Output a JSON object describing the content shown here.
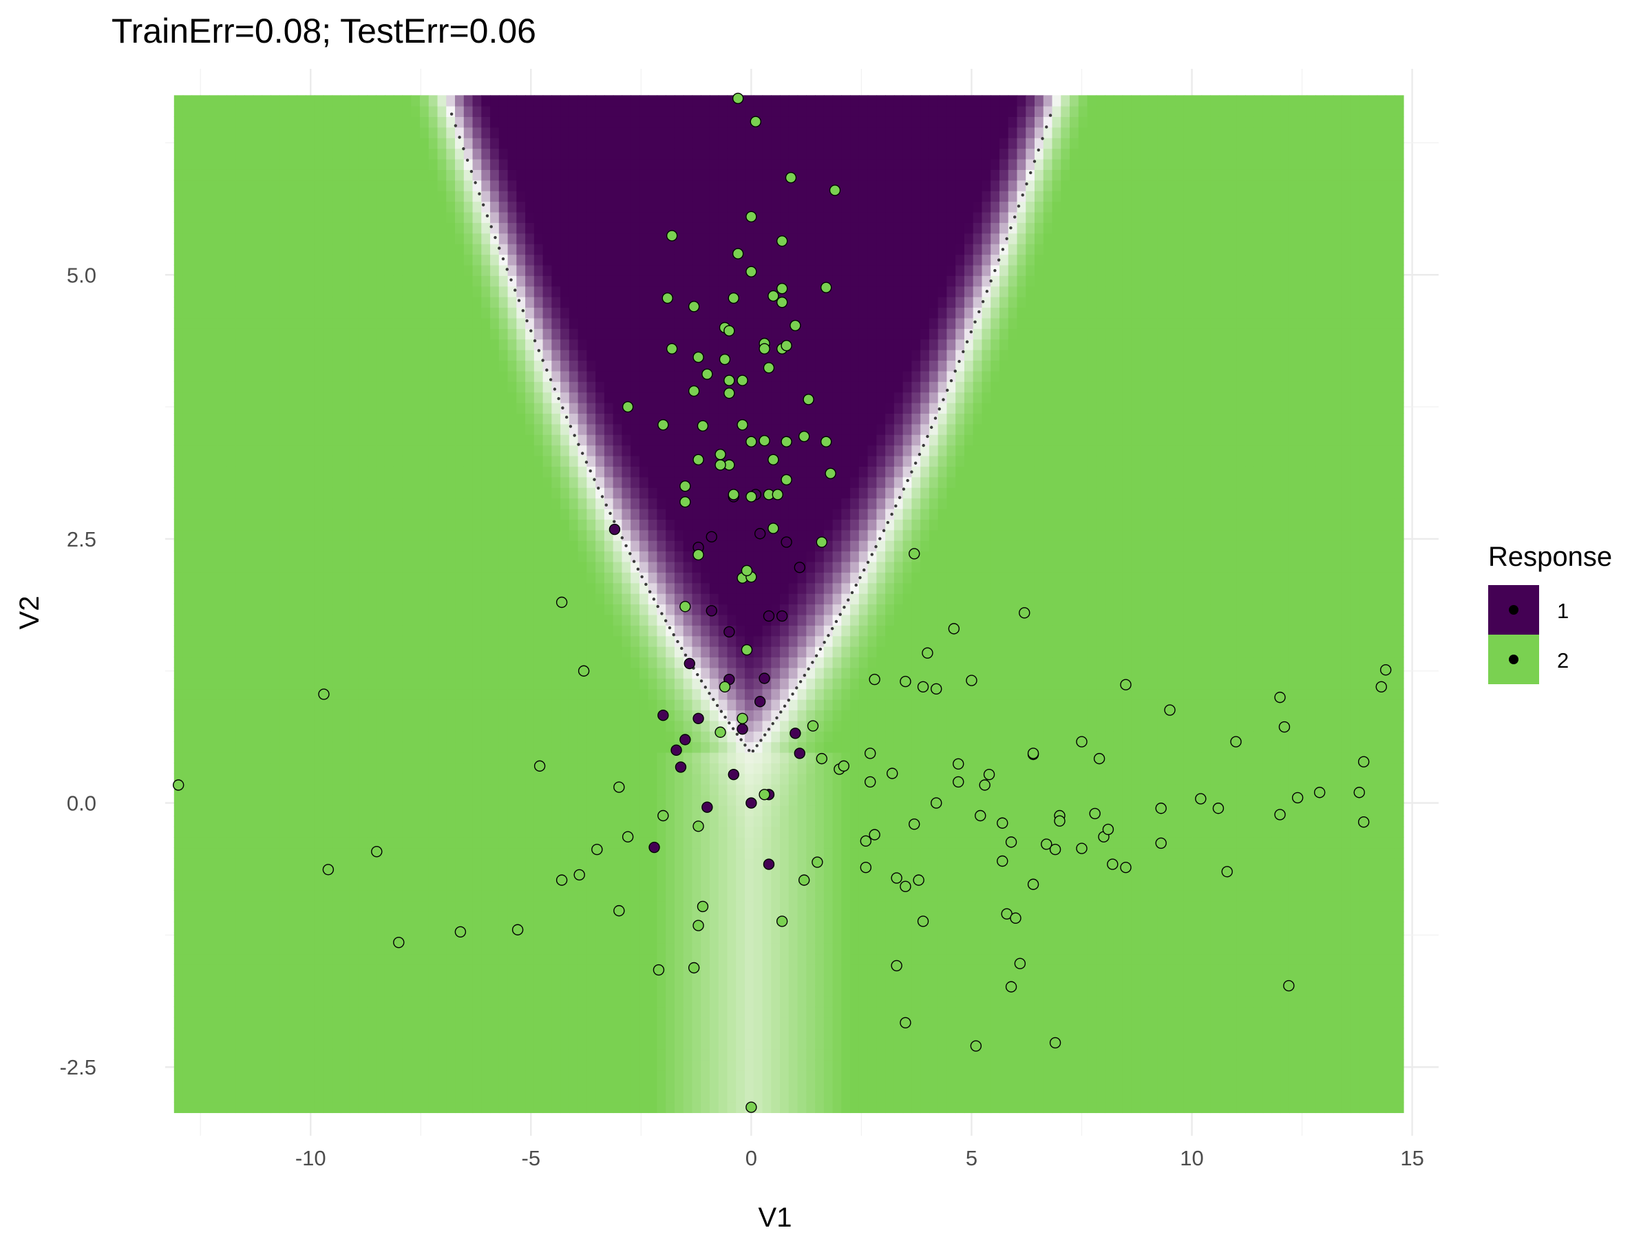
{
  "chart_data": {
    "type": "scatter",
    "title": "TrainErr=0.08;    TestErr=0.06",
    "xlabel": "V1",
    "ylabel": "V2",
    "xlim": [
      -13.3,
      15.6
    ],
    "ylim": [
      -3.15,
      6.95
    ],
    "x_ticks": [
      -10,
      -5,
      0,
      5,
      10,
      15
    ],
    "x_tick_labels": [
      "-10",
      "-5",
      "0",
      "5",
      "10",
      "15"
    ],
    "y_ticks": [
      -2.5,
      0.0,
      2.5,
      5.0
    ],
    "y_tick_labels": [
      "-2.5",
      "0.0",
      "2.5",
      "5.0"
    ],
    "grid": true,
    "background": {
      "type": "heatmap",
      "description_keys": [
        "class1_region",
        "class2_region"
      ],
      "x_range": [
        -13.1,
        14.8
      ],
      "y_range": [
        -2.93,
        6.7
      ],
      "class1_color": "#440154",
      "class2_color": "#7AD151",
      "boundary": "y = 0.47 + 0.05 * x^2 + 0.55 * |x|"
    },
    "legend": {
      "title": "Response",
      "position": "right",
      "entries": [
        {
          "label": "1",
          "color": "#440154"
        },
        {
          "label": "2",
          "color": "#7AD151"
        }
      ]
    },
    "series": [
      {
        "name": "1",
        "color": "#440154",
        "points": [
          [
            -2.0,
            0.83
          ],
          [
            -1.7,
            0.5
          ],
          [
            -1.5,
            0.6
          ],
          [
            -1.4,
            1.32
          ],
          [
            -1.2,
            0.8
          ],
          [
            -1.0,
            -0.04
          ],
          [
            -0.9,
            1.82
          ],
          [
            -0.5,
            1.62
          ],
          [
            -0.5,
            1.17
          ],
          [
            -0.4,
            0.27
          ],
          [
            -0.2,
            0.7
          ],
          [
            0.0,
            0.0
          ],
          [
            0.2,
            0.96
          ],
          [
            0.3,
            1.18
          ],
          [
            0.4,
            0.08
          ],
          [
            0.4,
            -0.58
          ],
          [
            1.0,
            0.66
          ],
          [
            1.1,
            0.47
          ],
          [
            -2.2,
            -0.42
          ],
          [
            -1.6,
            0.34
          ],
          [
            0.4,
            1.77
          ],
          [
            0.7,
            1.77
          ],
          [
            -3.1,
            2.59
          ],
          [
            -0.4,
            2.9
          ],
          [
            0.1,
            2.92
          ],
          [
            -0.9,
            2.52
          ],
          [
            0.2,
            2.55
          ],
          [
            1.1,
            2.23
          ],
          [
            -1.2,
            2.42
          ],
          [
            0.8,
            2.47
          ]
        ]
      },
      {
        "name": "2",
        "color": "#7AD151",
        "points": [
          [
            -1.5,
            1.86
          ],
          [
            -0.6,
            1.1
          ],
          [
            -0.7,
            0.67
          ],
          [
            -0.2,
            0.8
          ],
          [
            -0.1,
            1.45
          ],
          [
            0.3,
            0.08
          ],
          [
            -13.0,
            0.17
          ],
          [
            -9.7,
            1.03
          ],
          [
            -9.6,
            -0.63
          ],
          [
            -8.5,
            -0.46
          ],
          [
            -8.0,
            -1.32
          ],
          [
            -6.6,
            -1.22
          ],
          [
            -5.3,
            -1.2
          ],
          [
            -4.8,
            0.35
          ],
          [
            -4.3,
            1.9
          ],
          [
            -4.3,
            -0.73
          ],
          [
            -3.9,
            -0.68
          ],
          [
            -3.8,
            1.25
          ],
          [
            -3.5,
            -0.44
          ],
          [
            -3.0,
            0.15
          ],
          [
            -3.0,
            -1.02
          ],
          [
            -2.8,
            -0.32
          ],
          [
            -2.1,
            -1.58
          ],
          [
            -2.0,
            -0.12
          ],
          [
            -1.3,
            -1.56
          ],
          [
            -1.2,
            -0.22
          ],
          [
            -1.2,
            -1.16
          ],
          [
            -1.1,
            -0.98
          ],
          [
            0.7,
            -1.12
          ],
          [
            1.2,
            -0.73
          ],
          [
            1.4,
            0.73
          ],
          [
            1.5,
            -0.56
          ],
          [
            1.6,
            0.42
          ],
          [
            2.0,
            0.32
          ],
          [
            2.1,
            0.35
          ],
          [
            2.6,
            -0.36
          ],
          [
            2.6,
            -0.61
          ],
          [
            2.7,
            0.2
          ],
          [
            2.7,
            0.47
          ],
          [
            2.8,
            -0.3
          ],
          [
            2.8,
            1.17
          ],
          [
            3.2,
            0.28
          ],
          [
            3.3,
            -0.71
          ],
          [
            3.3,
            -1.54
          ],
          [
            3.5,
            1.15
          ],
          [
            3.5,
            -0.79
          ],
          [
            3.5,
            -2.08
          ],
          [
            3.7,
            -0.2
          ],
          [
            3.7,
            2.36
          ],
          [
            3.8,
            -0.73
          ],
          [
            3.9,
            1.1
          ],
          [
            3.9,
            -1.12
          ],
          [
            4.0,
            1.42
          ],
          [
            4.2,
            0.0
          ],
          [
            4.2,
            1.08
          ],
          [
            4.6,
            1.65
          ],
          [
            4.7,
            0.37
          ],
          [
            4.7,
            0.2
          ],
          [
            5.0,
            1.16
          ],
          [
            5.1,
            -2.3
          ],
          [
            5.2,
            -0.12
          ],
          [
            5.3,
            0.17
          ],
          [
            5.4,
            0.27
          ],
          [
            5.7,
            -0.19
          ],
          [
            5.7,
            -0.55
          ],
          [
            5.8,
            -1.05
          ],
          [
            5.9,
            -0.37
          ],
          [
            5.9,
            -1.74
          ],
          [
            6.0,
            -1.09
          ],
          [
            6.1,
            -1.52
          ],
          [
            6.2,
            1.8
          ],
          [
            6.4,
            0.46
          ],
          [
            6.4,
            0.47
          ],
          [
            6.4,
            -0.77
          ],
          [
            6.7,
            -0.39
          ],
          [
            6.9,
            -0.44
          ],
          [
            6.9,
            -2.27
          ],
          [
            7.0,
            -0.12
          ],
          [
            7.0,
            -0.17
          ],
          [
            7.5,
            -0.43
          ],
          [
            7.5,
            0.58
          ],
          [
            7.8,
            -0.1
          ],
          [
            7.9,
            0.42
          ],
          [
            8.0,
            -0.32
          ],
          [
            8.1,
            -0.25
          ],
          [
            8.2,
            -0.58
          ],
          [
            8.5,
            -0.61
          ],
          [
            8.5,
            1.12
          ],
          [
            9.3,
            -0.05
          ],
          [
            9.3,
            -0.38
          ],
          [
            9.5,
            0.88
          ],
          [
            10.2,
            0.04
          ],
          [
            10.6,
            -0.05
          ],
          [
            10.8,
            -0.65
          ],
          [
            11.0,
            0.58
          ],
          [
            12.0,
            1.0
          ],
          [
            12.0,
            -0.11
          ],
          [
            12.1,
            0.72
          ],
          [
            12.2,
            -1.73
          ],
          [
            12.4,
            0.05
          ],
          [
            12.9,
            0.1
          ],
          [
            13.8,
            0.1
          ],
          [
            13.9,
            -0.18
          ],
          [
            13.9,
            0.39
          ],
          [
            14.3,
            1.1
          ],
          [
            14.4,
            1.26
          ],
          [
            0.0,
            -2.88
          ],
          [
            -0.3,
            6.67
          ],
          [
            0.1,
            6.45
          ],
          [
            0.9,
            5.92
          ],
          [
            1.9,
            5.8
          ],
          [
            0.0,
            5.55
          ],
          [
            -1.8,
            5.37
          ],
          [
            0.7,
            5.32
          ],
          [
            -0.3,
            5.2
          ],
          [
            0.0,
            5.03
          ],
          [
            0.7,
            4.87
          ],
          [
            -0.4,
            4.78
          ],
          [
            0.5,
            4.8
          ],
          [
            -1.9,
            4.78
          ],
          [
            0.7,
            4.74
          ],
          [
            -1.3,
            4.7
          ],
          [
            1.7,
            4.88
          ],
          [
            -0.6,
            4.5
          ],
          [
            1.0,
            4.52
          ],
          [
            -0.5,
            4.47
          ],
          [
            0.3,
            4.35
          ],
          [
            0.3,
            4.3
          ],
          [
            0.7,
            4.3
          ],
          [
            0.8,
            4.33
          ],
          [
            -1.8,
            4.3
          ],
          [
            -1.2,
            4.22
          ],
          [
            -0.6,
            4.2
          ],
          [
            0.4,
            4.12
          ],
          [
            -0.5,
            4.0
          ],
          [
            -0.2,
            4.0
          ],
          [
            -1.0,
            4.06
          ],
          [
            -1.3,
            3.9
          ],
          [
            -0.5,
            3.88
          ],
          [
            1.3,
            3.82
          ],
          [
            -2.8,
            3.75
          ],
          [
            -2.0,
            3.58
          ],
          [
            -1.1,
            3.57
          ],
          [
            -0.2,
            3.58
          ],
          [
            0.3,
            3.43
          ],
          [
            1.2,
            3.47
          ],
          [
            1.7,
            3.42
          ],
          [
            0.8,
            3.42
          ],
          [
            0.0,
            3.42
          ],
          [
            -0.7,
            3.3
          ],
          [
            -1.2,
            3.25
          ],
          [
            -0.5,
            3.2
          ],
          [
            -0.7,
            3.2
          ],
          [
            0.5,
            3.25
          ],
          [
            1.8,
            3.12
          ],
          [
            0.8,
            3.06
          ],
          [
            -1.5,
            3.0
          ],
          [
            0.4,
            2.92
          ],
          [
            0.6,
            2.92
          ],
          [
            -0.4,
            2.92
          ],
          [
            -1.5,
            2.85
          ],
          [
            0.0,
            2.9
          ],
          [
            0.5,
            2.6
          ],
          [
            -1.2,
            2.35
          ],
          [
            -0.2,
            2.13
          ],
          [
            0.0,
            2.14
          ],
          [
            1.6,
            2.47
          ],
          [
            -0.1,
            2.2
          ]
        ]
      }
    ]
  }
}
